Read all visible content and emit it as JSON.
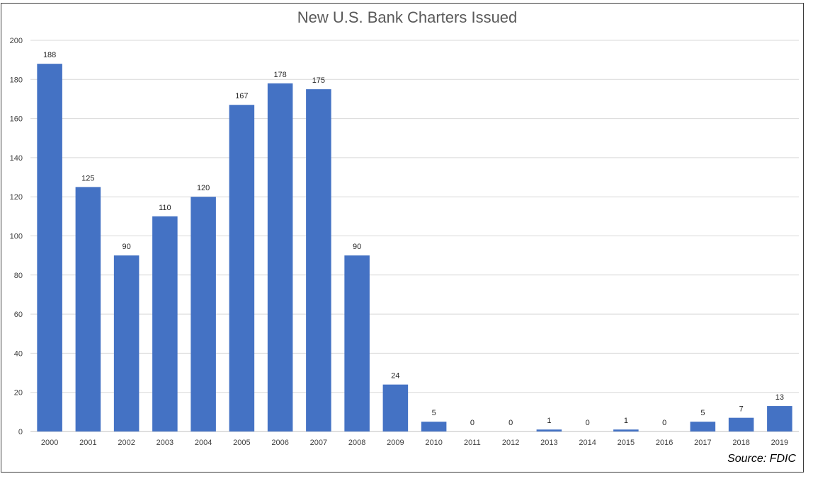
{
  "chart_data": {
    "type": "bar",
    "title": "New U.S. Bank Charters Issued",
    "xlabel": "",
    "ylabel": "",
    "categories": [
      "2000",
      "2001",
      "2002",
      "2003",
      "2004",
      "2005",
      "2006",
      "2007",
      "2008",
      "2009",
      "2010",
      "2011",
      "2012",
      "2013",
      "2014",
      "2015",
      "2016",
      "2017",
      "2018",
      "2019"
    ],
    "values": [
      188,
      125,
      90,
      110,
      120,
      167,
      178,
      175,
      90,
      24,
      5,
      0,
      0,
      1,
      0,
      1,
      0,
      5,
      7,
      13
    ],
    "ylim": [
      0,
      200
    ],
    "yticks": [
      0,
      20,
      40,
      60,
      80,
      100,
      120,
      140,
      160,
      180,
      200
    ],
    "grid": true,
    "data_labels": true,
    "legend": "none",
    "bar_color": "#4472c4",
    "source": "Source: FDIC"
  }
}
